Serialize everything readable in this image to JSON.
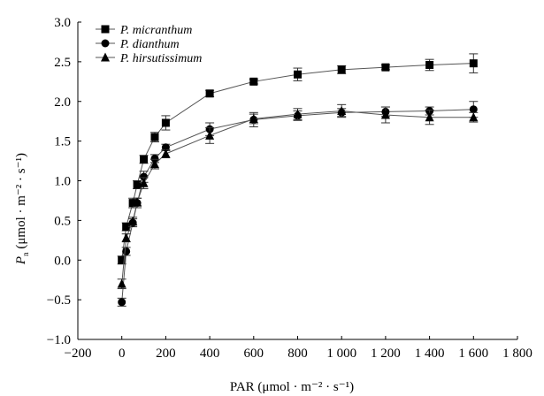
{
  "chart_data": {
    "type": "line",
    "xlabel": "PAR (μmol · m⁻² · s⁻¹)",
    "ylabel_main": "P",
    "ylabel_sub": "n",
    "ylabel_rest": " (μmol · m⁻² · s⁻¹)",
    "xlim": [
      -200,
      1800
    ],
    "ylim": [
      -1.0,
      3.0
    ],
    "xticks": [
      -200,
      0,
      200,
      400,
      600,
      800,
      1000,
      1200,
      1400,
      1600,
      1800
    ],
    "xtick_labels": [
      "−200",
      "0",
      "200",
      "400",
      "600",
      "800",
      "1 000",
      "1 200",
      "1 400",
      "1 600",
      "1 800"
    ],
    "yticks": [
      -1.0,
      -0.5,
      0.0,
      0.5,
      1.0,
      1.5,
      2.0,
      2.5,
      3.0
    ],
    "ytick_labels": [
      "−1.0",
      "−0.5",
      "0.0",
      "0.5",
      "1.0",
      "1.5",
      "2.0",
      "2.5",
      "3.0"
    ],
    "grid": false,
    "legend_position": "top-left",
    "series": [
      {
        "name": "P. micranthum",
        "marker": "square",
        "x": [
          0,
          20,
          50,
          70,
          100,
          150,
          200,
          400,
          600,
          800,
          1000,
          1200,
          1400,
          1600
        ],
        "y": [
          0.0,
          0.42,
          0.72,
          0.95,
          1.27,
          1.55,
          1.73,
          2.1,
          2.25,
          2.34,
          2.4,
          2.43,
          2.46,
          2.48
        ],
        "err": [
          0.05,
          0.05,
          0.06,
          0.05,
          0.05,
          0.06,
          0.09,
          0.04,
          0.03,
          0.08,
          0.05,
          0.03,
          0.07,
          0.12
        ]
      },
      {
        "name": "P. dianthum",
        "marker": "circle",
        "x": [
          0,
          20,
          50,
          70,
          100,
          150,
          200,
          400,
          600,
          800,
          1000,
          1200,
          1400,
          1600
        ],
        "y": [
          -0.53,
          0.11,
          0.47,
          0.72,
          1.05,
          1.28,
          1.42,
          1.65,
          1.77,
          1.82,
          1.86,
          1.87,
          1.88,
          1.9
        ],
        "err": [
          0.05,
          0.05,
          0.05,
          0.06,
          0.07,
          0.05,
          0.04,
          0.08,
          0.09,
          0.06,
          0.05,
          0.06,
          0.05,
          0.1
        ]
      },
      {
        "name": "P. hirsutissimum",
        "marker": "triangle",
        "x": [
          0,
          20,
          50,
          70,
          100,
          150,
          200,
          400,
          600,
          800,
          1000,
          1200,
          1400,
          1600
        ],
        "y": [
          -0.3,
          0.28,
          0.49,
          0.73,
          0.97,
          1.21,
          1.34,
          1.57,
          1.78,
          1.84,
          1.88,
          1.83,
          1.8,
          1.8
        ],
        "err": [
          0.06,
          0.05,
          0.05,
          0.05,
          0.07,
          0.06,
          0.05,
          0.1,
          0.06,
          0.07,
          0.08,
          0.1,
          0.09,
          0.06
        ]
      }
    ]
  }
}
